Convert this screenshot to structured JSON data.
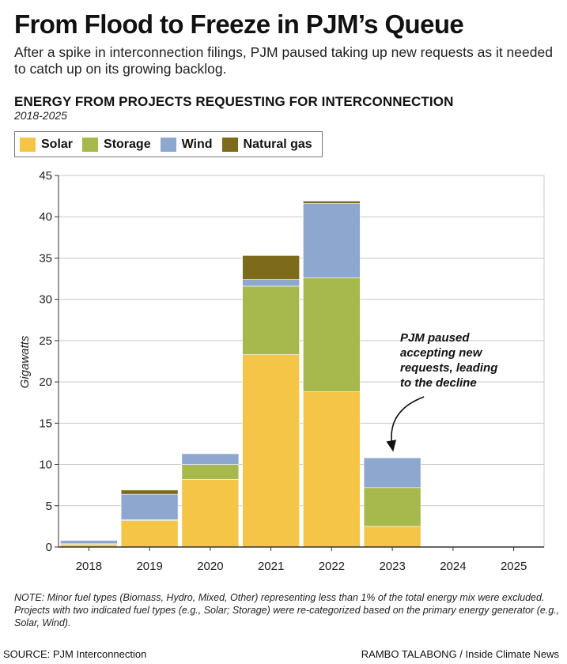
{
  "header": {
    "title": "From Flood to Freeze in PJM’s Queue",
    "subtitle": "After a spike in interconnection filings, PJM paused taking up new requests as it needed to catch up on its growing backlog."
  },
  "chart_data": {
    "type": "bar",
    "stacked": true,
    "title": "ENERGY FROM PROJECTS REQUESTING FOR INTERCONNECTION",
    "subtitle": "2018-2025",
    "xlabel": "",
    "ylabel": "Gigawatts",
    "ylim": [
      0,
      45
    ],
    "yticks": [
      0,
      5,
      10,
      15,
      20,
      25,
      30,
      35,
      40,
      45
    ],
    "grid": true,
    "legend_position": "top-left",
    "categories": [
      "2018",
      "2019",
      "2020",
      "2021",
      "2022",
      "2023",
      "2024",
      "2025"
    ],
    "series": [
      {
        "name": "Solar",
        "color": "#f5c547",
        "values": [
          0.3,
          3.2,
          8.2,
          23.3,
          18.8,
          2.5,
          0,
          0
        ]
      },
      {
        "name": "Storage",
        "color": "#a7b84d",
        "values": [
          0.1,
          0.1,
          1.8,
          8.3,
          13.8,
          4.7,
          0,
          0
        ]
      },
      {
        "name": "Wind",
        "color": "#8ea7cf",
        "values": [
          0.4,
          3.1,
          1.3,
          0.8,
          9.0,
          3.6,
          0,
          0
        ]
      },
      {
        "name": "Natural gas",
        "color": "#7d6a1a",
        "values": [
          0,
          0.5,
          0,
          2.9,
          0.3,
          0,
          0,
          0
        ]
      }
    ],
    "annotation": {
      "text_lines": [
        "PJM paused",
        "accepting new",
        "requests, leading",
        "to the decline"
      ],
      "target_category": "2023"
    }
  },
  "footer": {
    "note": "NOTE: Minor fuel types (Biomass, Hydro, Mixed, Other) representing less than 1% of the total energy mix were excluded. Projects with two indicated fuel types (e.g., Solar; Storage) were re-categorized based on the primary energy generator (e.g., Solar, Wind).",
    "source": "SOURCE: PJM Interconnection",
    "credit": "RAMBO TALABONG / Inside Climate News"
  }
}
